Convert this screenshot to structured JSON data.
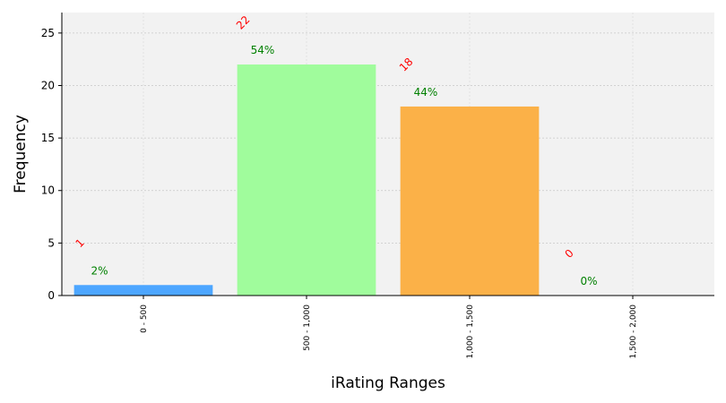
{
  "chart_data": {
    "type": "bar",
    "x_label": "iRating Ranges",
    "y_label": "Frequency",
    "categories": [
      "0 - 500",
      "500 - 1,000",
      "1,000 - 1,500",
      "1,500 - 2,000"
    ],
    "values": [
      1,
      22,
      18,
      0
    ],
    "colors": [
      "#4da6ff",
      "#a0fc9c",
      "#fbb148",
      "#d3d3d3"
    ],
    "percent_labels": [
      "2%",
      "54%",
      "44%",
      "0%"
    ],
    "count_color": "red",
    "percent_color": "green",
    "ylim": [
      0,
      26.95
    ],
    "yticks": [
      0,
      5,
      10,
      15,
      20,
      25
    ],
    "grid": true
  }
}
